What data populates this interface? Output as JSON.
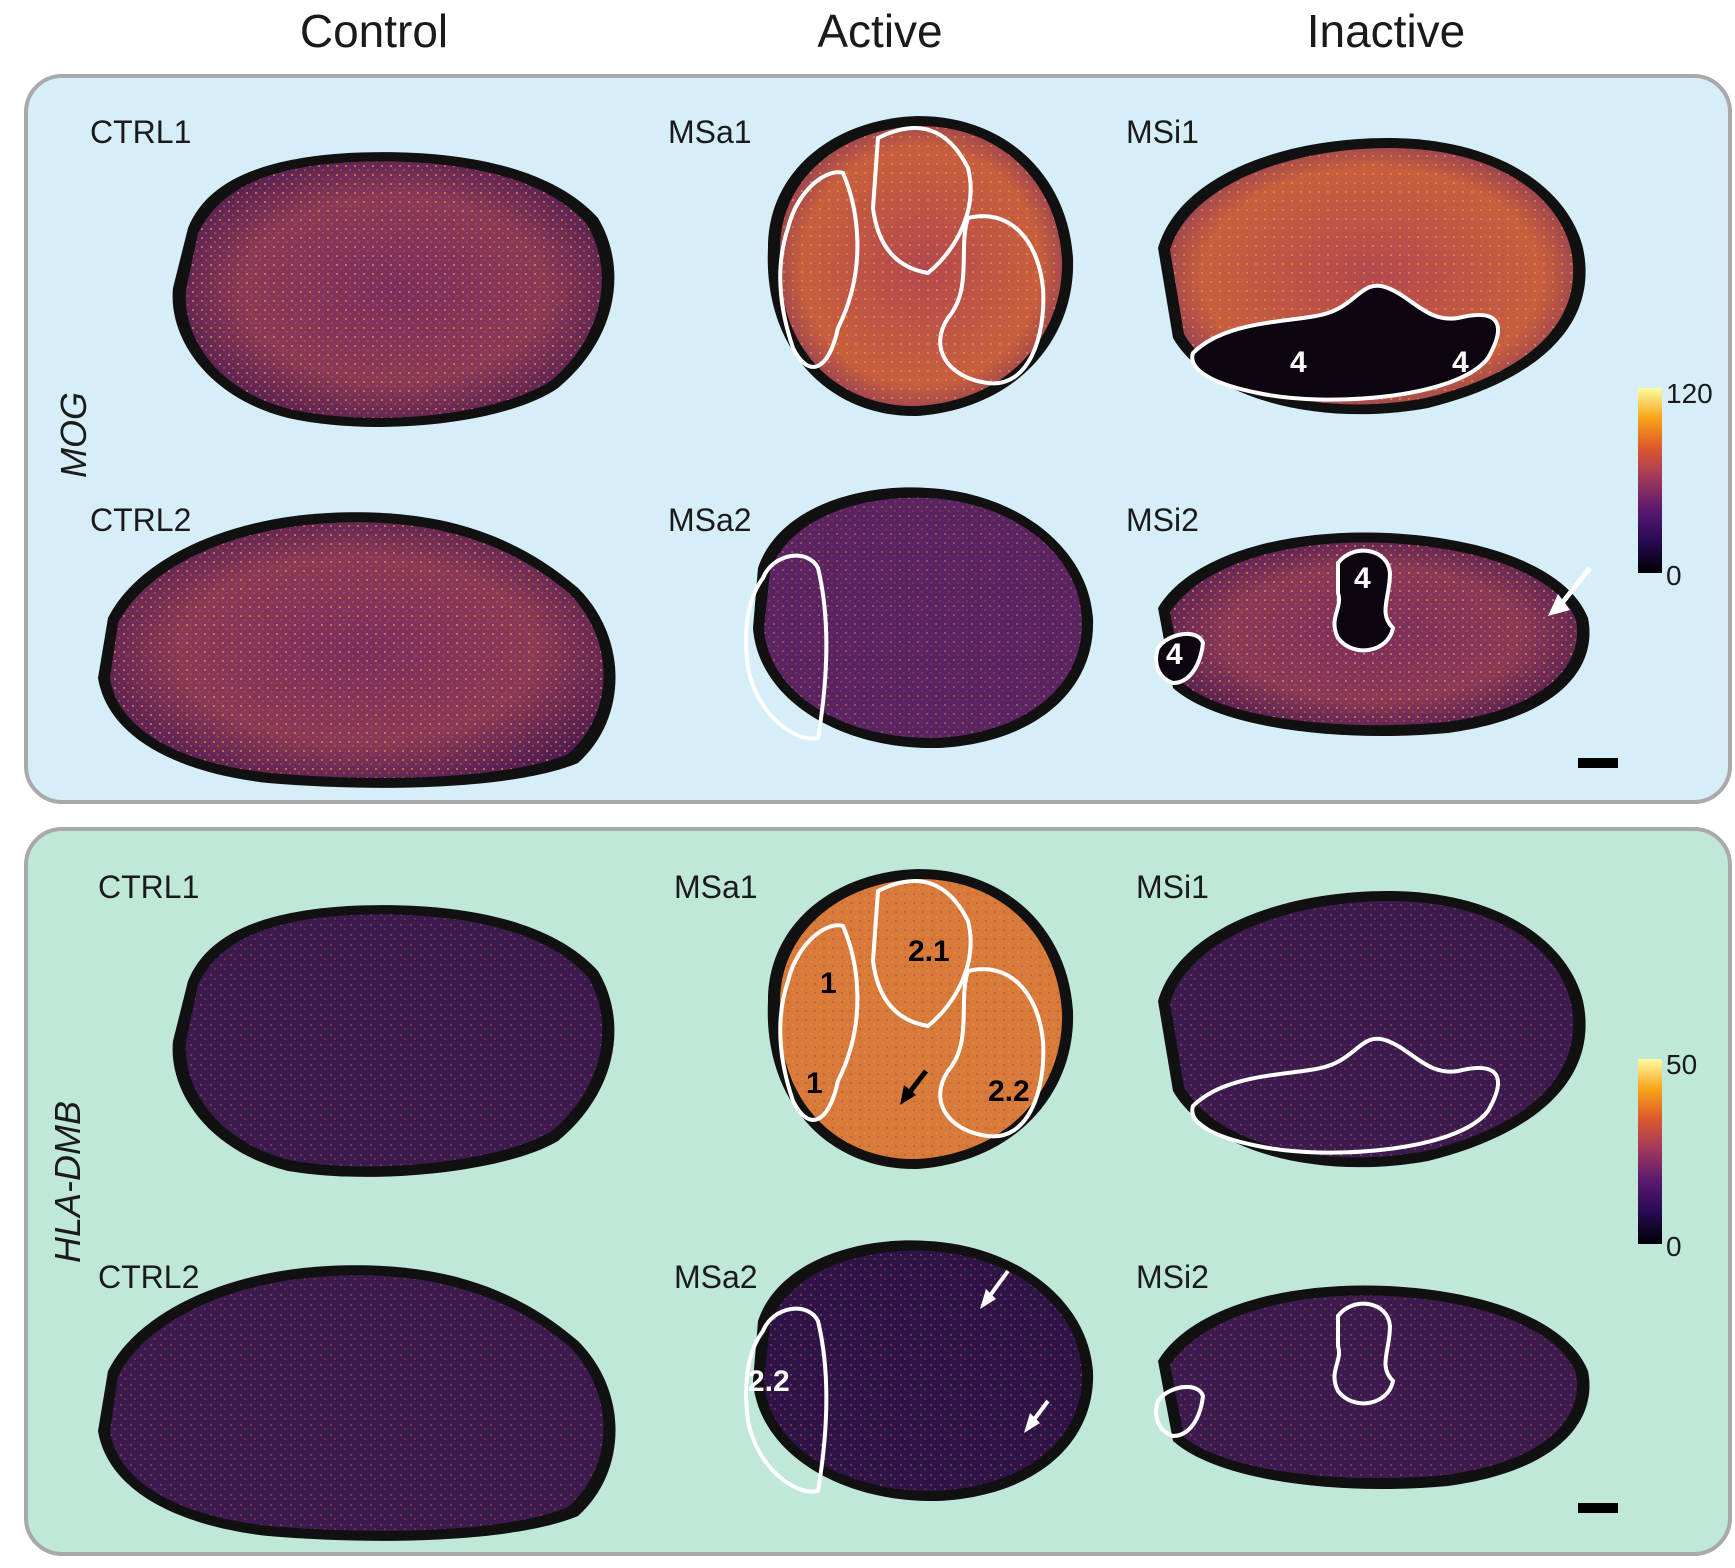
{
  "columns": [
    "Control",
    "Active",
    "Inactive"
  ],
  "genes": {
    "top": "MOG",
    "bottom": "HLA-DMB"
  },
  "samples": {
    "control": [
      "CTRL1",
      "CTRL2"
    ],
    "active": [
      "MSa1",
      "MSa2"
    ],
    "inactive": [
      "MSi1",
      "MSi2"
    ]
  },
  "top_panel": {
    "background": "#d6eef8",
    "colorbar": {
      "max": "120",
      "min": "0"
    },
    "region_labels": {
      "msi1_a": "4",
      "msi1_b": "4",
      "msi2_a": "4",
      "msi2_b": "4"
    }
  },
  "bottom_panel": {
    "background": "#bfe8d8",
    "colorbar": {
      "max": "50",
      "min": "0"
    },
    "region_labels": {
      "msa1_a": "1",
      "msa1_b": "1",
      "msa1_c": "2.1",
      "msa1_d": "2.2",
      "msa2_a": "2.2"
    }
  },
  "colors": {
    "tissue_low": "#2a1240",
    "tissue_mid": "#6b2d5c",
    "tissue_high": "#f2a03c",
    "outline": "#ffffff"
  }
}
